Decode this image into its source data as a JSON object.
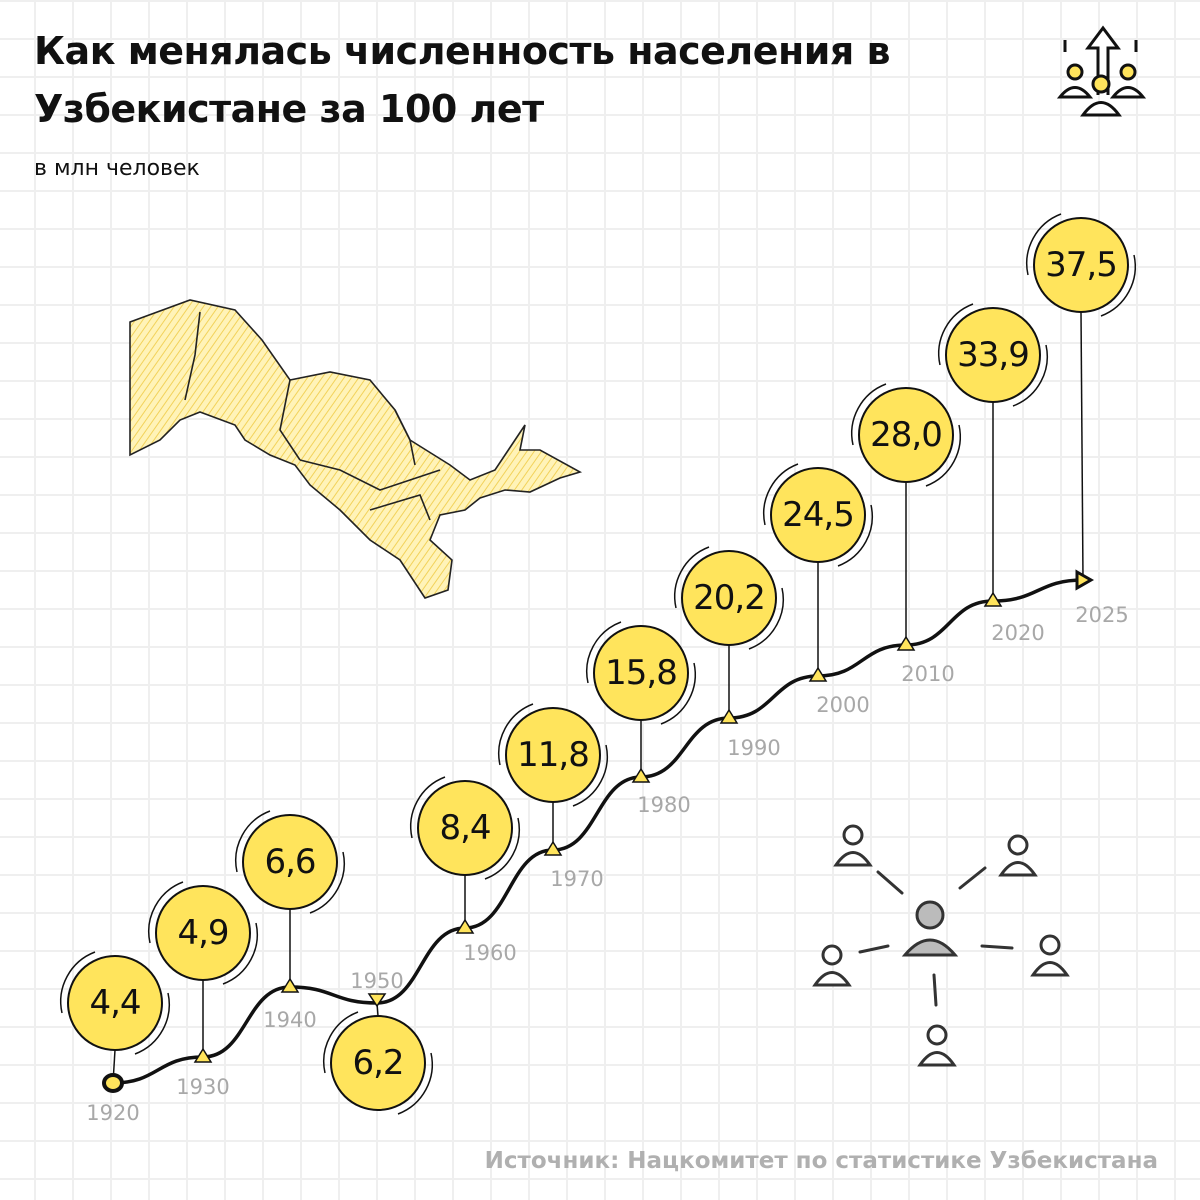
{
  "header": {
    "title_line1": "Как менялась численность населения в",
    "title_line2": "Узбекистане за 100 лет",
    "subtitle": "в млн человек",
    "icon": "population-growth-icon"
  },
  "footer": {
    "source": "Источник: Нацкомитет по статистике Узбекистана"
  },
  "decorations": {
    "map": "uzbekistan-map",
    "network_icon": "people-network-icon"
  },
  "colors": {
    "bubble": "#FFE45C",
    "line": "#111111",
    "year_label": "#A8A8A8"
  },
  "chart_data": {
    "type": "line",
    "title": "Как менялась численность населения в Узбекистане за 100 лет",
    "ylabel": "в млн человек",
    "x": [
      "1920",
      "1930",
      "1940",
      "1950",
      "1960",
      "1970",
      "1980",
      "1990",
      "2000",
      "2010",
      "2020",
      "2025"
    ],
    "values": [
      4.4,
      4.9,
      6.6,
      6.2,
      8.4,
      11.8,
      15.8,
      20.2,
      24.5,
      28.0,
      33.9,
      37.5
    ],
    "labels": [
      "4,4",
      "4,9",
      "6,6",
      "6,2",
      "8,4",
      "11,8",
      "15,8",
      "20,2",
      "24,5",
      "28,0",
      "33,9",
      "37,5"
    ],
    "grid": true,
    "legend": "none"
  }
}
